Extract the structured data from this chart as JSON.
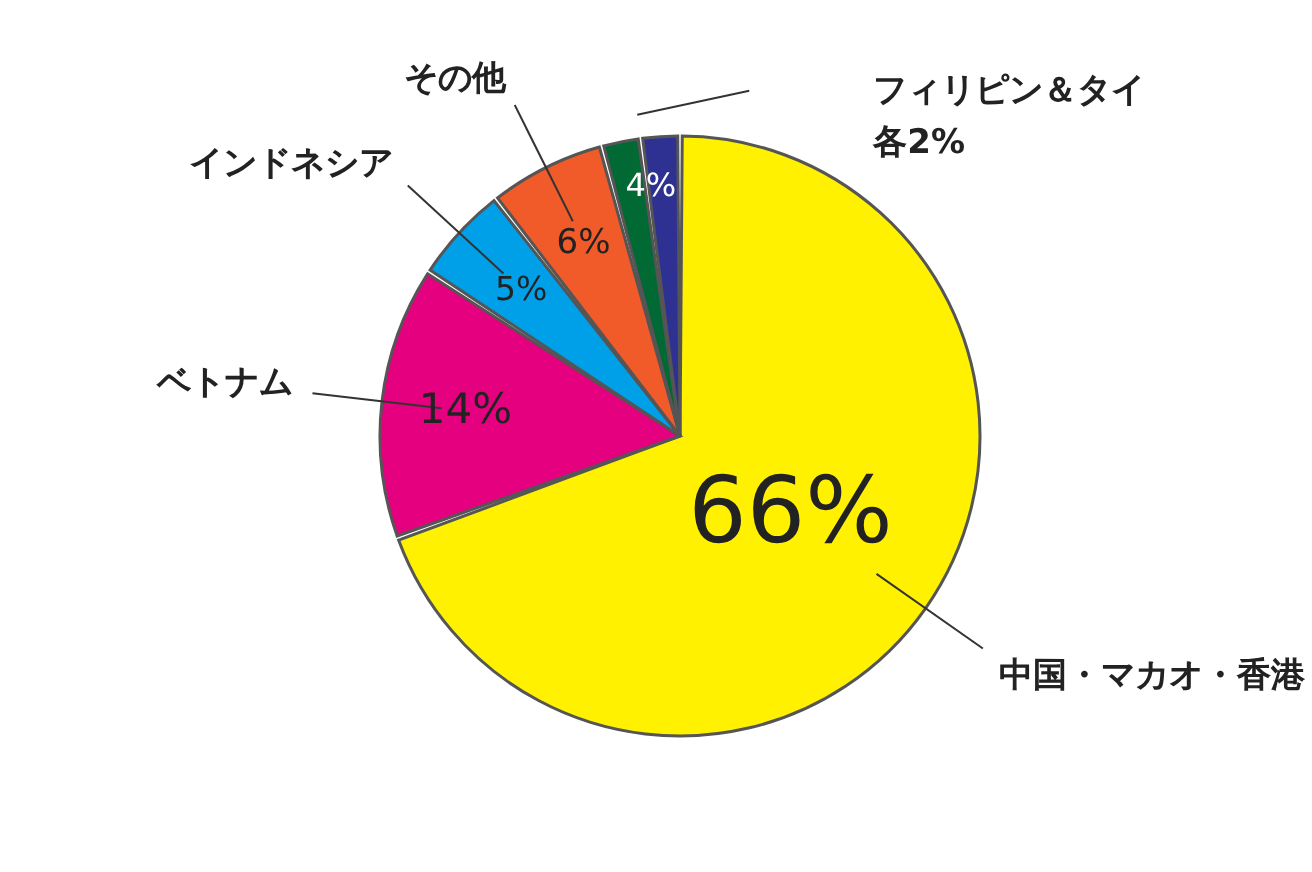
{
  "chart_data": {
    "type": "pie",
    "categories": [
      "中国・マカオ・香港",
      "ベトナム",
      "インドネシア",
      "その他",
      null,
      null
    ],
    "values": [
      66,
      14,
      5,
      6,
      2,
      2
    ],
    "colors": [
      "#fff100",
      "#e4007f",
      "#00a0e9",
      "#f15a29",
      "#006934",
      "#2e3192"
    ],
    "value_labels": [
      "66%",
      "14%",
      "5%",
      "6%",
      null,
      null
    ],
    "annotations": [
      "フィリピン＆タイ",
      "各2%",
      "4%"
    ]
  }
}
